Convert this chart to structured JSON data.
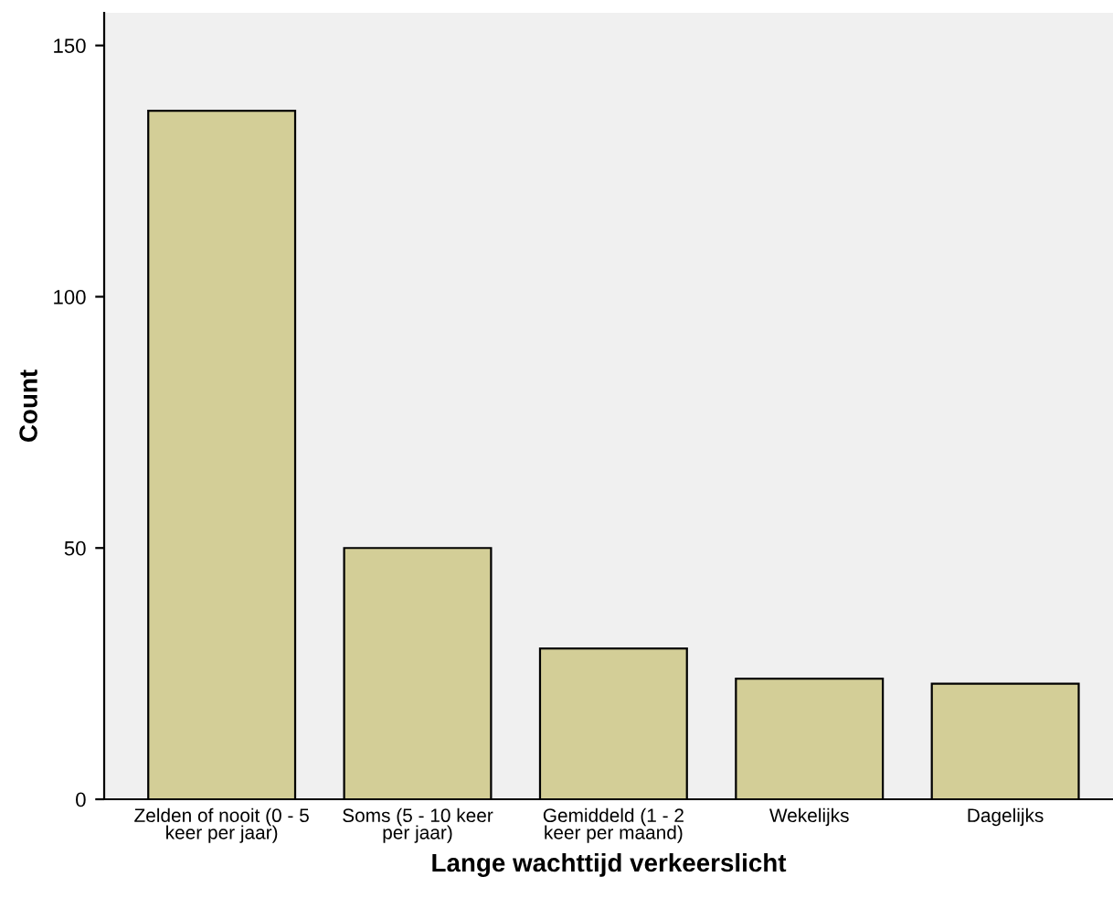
{
  "chart_data": {
    "type": "bar",
    "xlabel": "Lange wachttijd verkeerslicht",
    "ylabel": "Count",
    "categories": [
      "Zelden of nooit (0 - 5\nkeer per jaar)",
      "Soms (5 - 10 keer\nper jaar)",
      "Gemiddeld (1 - 2\nkeer per maand)",
      "Wekelijks",
      "Dagelijks"
    ],
    "values": [
      137,
      50,
      30,
      24,
      23
    ],
    "color": "#d3ce97",
    "ylim": [
      0,
      156.5
    ],
    "yticks": [
      0,
      50,
      100,
      150
    ],
    "grid": false
  }
}
